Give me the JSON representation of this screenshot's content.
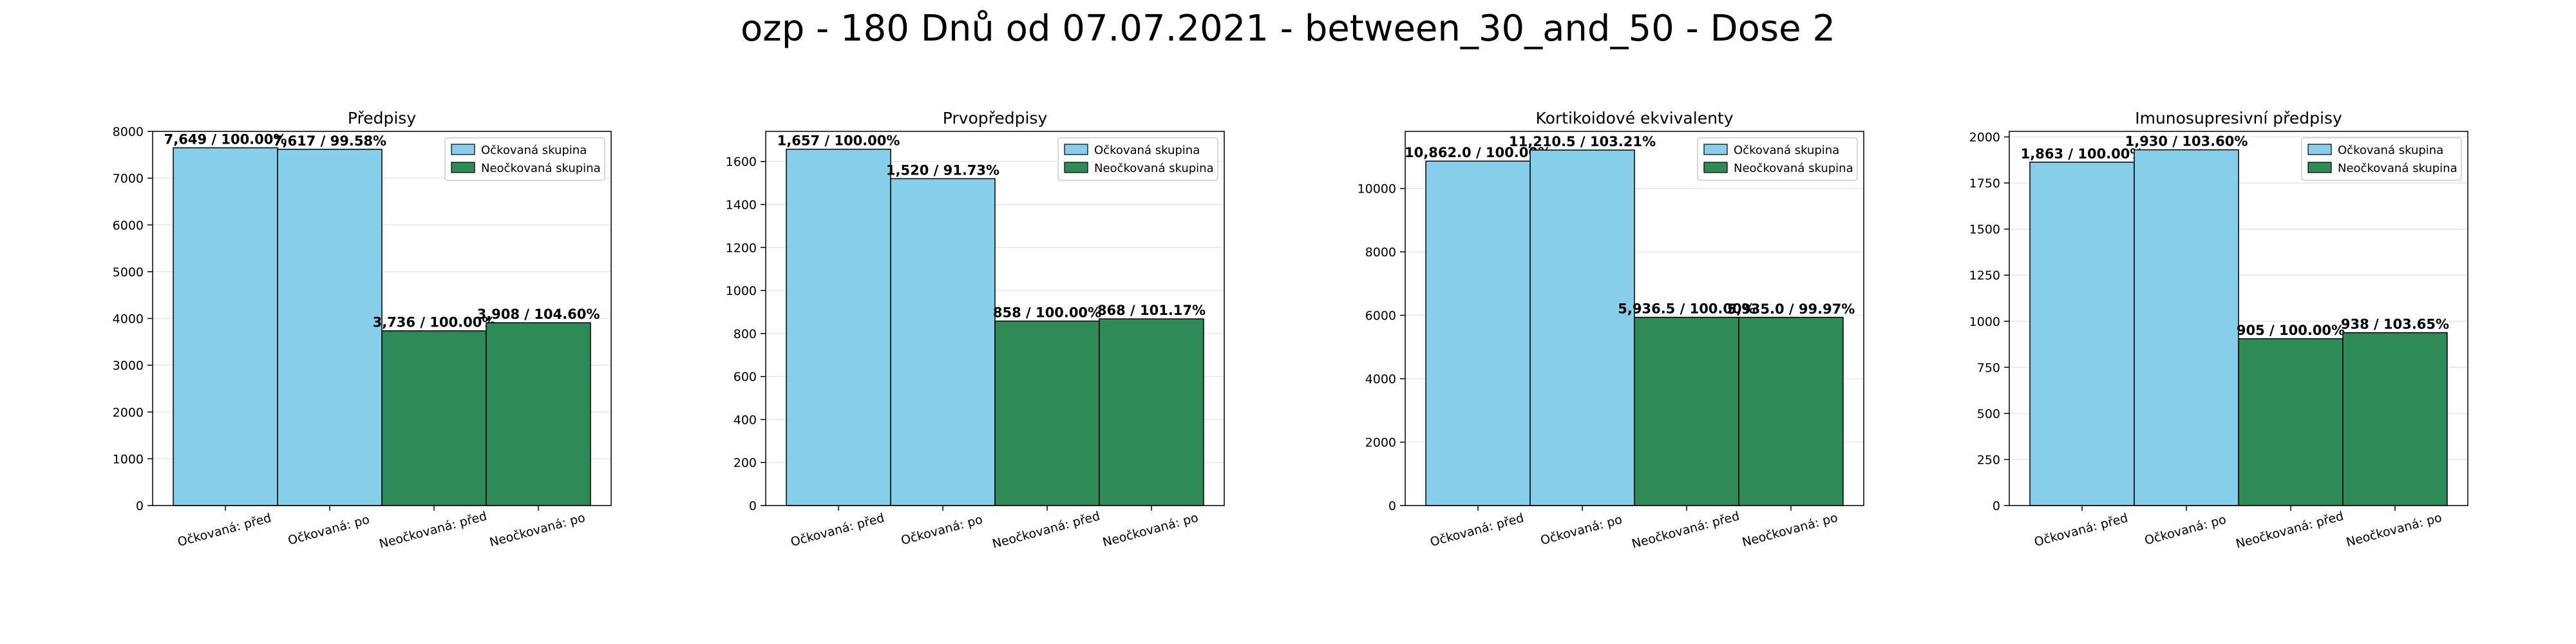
{
  "figure": {
    "title": "ozp - 180 Dnů od 07.07.2021 - between_30_and_50 - Dose 2"
  },
  "colors": {
    "vaccinated": "#87ceeb",
    "unvaccinated": "#2e8b57",
    "edge": "#000000",
    "grid": "#e6e6e6"
  },
  "legend_labels": [
    "Očkovaná skupina",
    "Neočkovaná skupina"
  ],
  "chart_data": [
    {
      "type": "bar",
      "title": "Předpisy",
      "categories": [
        "Očkovaná: před",
        "Očkovaná: po",
        "Neočkovaná: před",
        "Neočkovaná: po"
      ],
      "values": [
        7649,
        7617,
        3736,
        3908
      ],
      "group": [
        "vaccinated",
        "vaccinated",
        "unvaccinated",
        "unvaccinated"
      ],
      "bar_labels": [
        "7,649 / 100.00%",
        "7,617 / 99.58%",
        "3,736 / 100.00%",
        "3,908 / 104.60%"
      ],
      "ylim": [
        0,
        8000
      ],
      "yticks": [
        0,
        1000,
        2000,
        3000,
        4000,
        5000,
        6000,
        7000,
        8000
      ],
      "ytick_labels": [
        "0",
        "1000",
        "2000",
        "3000",
        "4000",
        "5000",
        "6000",
        "7000",
        "8000"
      ],
      "legend": "top-right",
      "grid": true
    },
    {
      "type": "bar",
      "title": "Prvopředpisy",
      "categories": [
        "Očkovaná: před",
        "Očkovaná: po",
        "Neočkovaná: před",
        "Neočkovaná: po"
      ],
      "values": [
        1657,
        1520,
        858,
        868
      ],
      "group": [
        "vaccinated",
        "vaccinated",
        "unvaccinated",
        "unvaccinated"
      ],
      "bar_labels": [
        "1,657 / 100.00%",
        "1,520 / 91.73%",
        "858 / 100.00%",
        "868 / 101.17%"
      ],
      "ylim": [
        0,
        1740
      ],
      "yticks": [
        0,
        200,
        400,
        600,
        800,
        1000,
        1200,
        1400,
        1600
      ],
      "ytick_labels": [
        "0",
        "200",
        "400",
        "600",
        "800",
        "1000",
        "1200",
        "1400",
        "1600"
      ],
      "legend": "top-right",
      "grid": true
    },
    {
      "type": "bar",
      "title": "Kortikoidové ekvivalenty",
      "categories": [
        "Očkovaná: před",
        "Očkovaná: po",
        "Neočkovaná: před",
        "Neočkovaná: po"
      ],
      "values": [
        10862.0,
        11210.5,
        5936.5,
        5935.0
      ],
      "group": [
        "vaccinated",
        "vaccinated",
        "unvaccinated",
        "unvaccinated"
      ],
      "bar_labels": [
        "10,862.0 / 100.00%",
        "11,210.5 / 103.21%",
        "5,936.5 / 100.00%",
        "5,935.0 / 99.97%"
      ],
      "ylim": [
        0,
        11800
      ],
      "yticks": [
        0,
        2000,
        4000,
        6000,
        8000,
        10000
      ],
      "ytick_labels": [
        "0",
        "2000",
        "4000",
        "6000",
        "8000",
        "10000"
      ],
      "legend": "top-right",
      "grid": true
    },
    {
      "type": "bar",
      "title": "Imunosupresivní předpisy",
      "categories": [
        "Očkovaná: před",
        "Očkovaná: po",
        "Neočkovaná: před",
        "Neočkovaná: po"
      ],
      "values": [
        1863,
        1930,
        905,
        938
      ],
      "group": [
        "vaccinated",
        "vaccinated",
        "unvaccinated",
        "unvaccinated"
      ],
      "bar_labels": [
        "1,863 / 100.00%",
        "1,930 / 103.60%",
        "905 / 100.00%",
        "938 / 103.65%"
      ],
      "ylim": [
        0,
        2030
      ],
      "yticks": [
        0,
        250,
        500,
        750,
        1000,
        1250,
        1500,
        1750,
        2000
      ],
      "ytick_labels": [
        "0",
        "250",
        "500",
        "750",
        "1000",
        "1250",
        "1500",
        "1750",
        "2000"
      ],
      "legend": "top-right",
      "grid": true
    }
  ]
}
